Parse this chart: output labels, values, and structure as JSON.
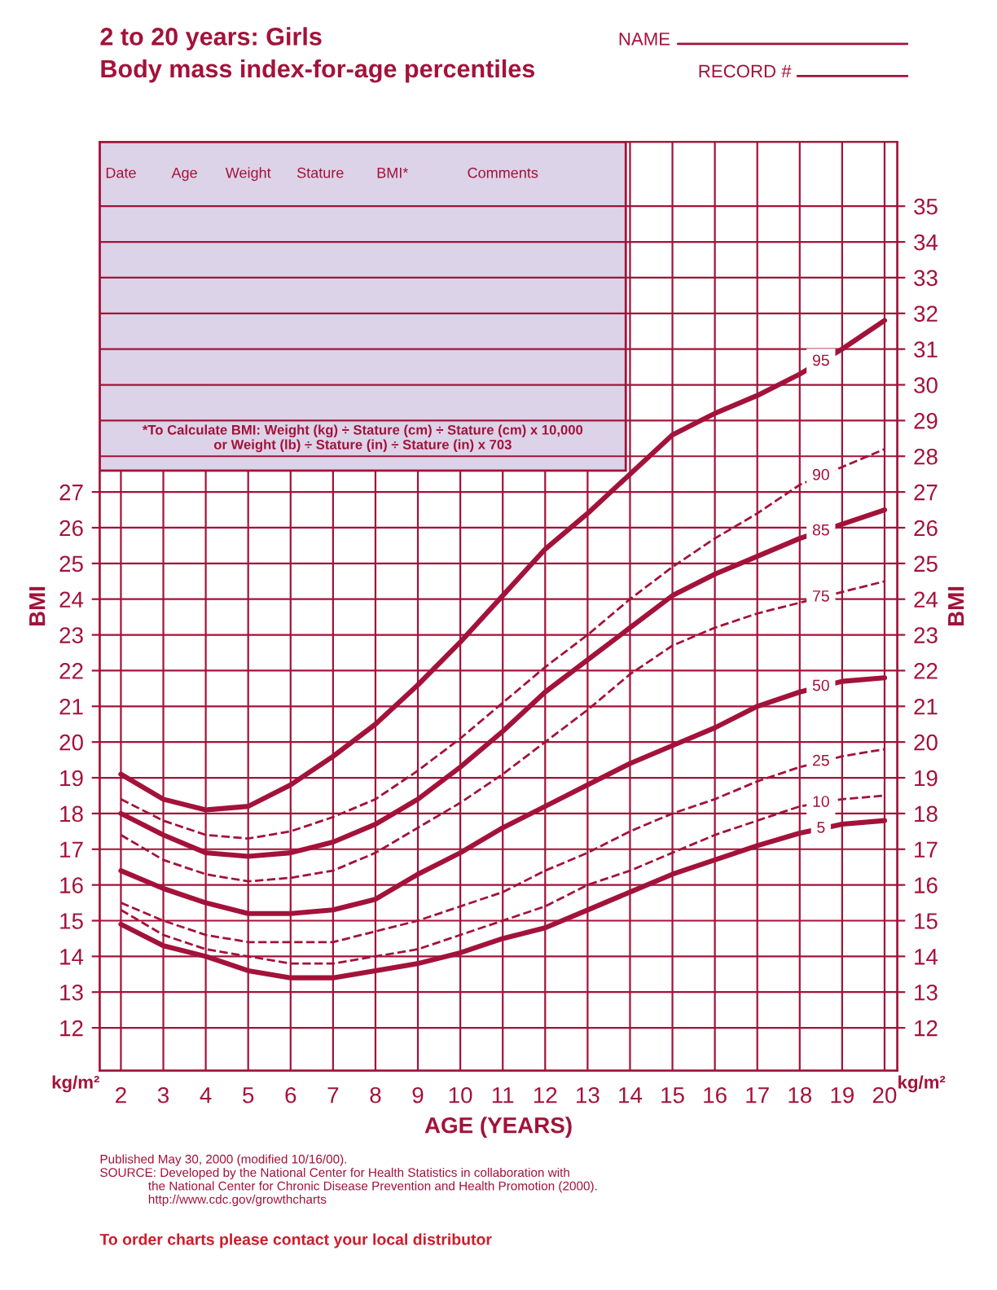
{
  "chart_data": {
    "type": "line",
    "title": "2 to 20 years: Girls",
    "subtitle": "Body mass index-for-age percentiles",
    "xlabel": "AGE (YEARS)",
    "ylabel": "BMI",
    "y2label": "BMI",
    "x": [
      2,
      3,
      4,
      5,
      6,
      7,
      8,
      9,
      10,
      11,
      12,
      13,
      14,
      15,
      16,
      17,
      18,
      19,
      20
    ],
    "series": [
      {
        "name": "95",
        "color": "#a3123a",
        "line_style": "solid",
        "values": [
          19.1,
          18.4,
          18.1,
          18.2,
          18.8,
          19.6,
          20.5,
          21.6,
          22.8,
          24.1,
          25.4,
          26.4,
          27.5,
          28.6,
          29.2,
          29.7,
          30.3,
          31.0,
          31.8
        ]
      },
      {
        "name": "90",
        "color": "#a3123a",
        "line_style": "dashed",
        "values": [
          18.4,
          17.8,
          17.4,
          17.3,
          17.5,
          17.9,
          18.4,
          19.2,
          20.1,
          21.1,
          22.1,
          23.0,
          24.0,
          24.9,
          25.7,
          26.4,
          27.2,
          27.7,
          28.2
        ]
      },
      {
        "name": "85",
        "color": "#a3123a",
        "line_style": "solid",
        "values": [
          18.0,
          17.4,
          16.9,
          16.8,
          16.9,
          17.2,
          17.7,
          18.4,
          19.3,
          20.3,
          21.4,
          22.3,
          23.2,
          24.1,
          24.7,
          25.2,
          25.7,
          26.1,
          26.5
        ]
      },
      {
        "name": "75",
        "color": "#a3123a",
        "line_style": "dashed",
        "values": [
          17.4,
          16.7,
          16.3,
          16.1,
          16.2,
          16.4,
          16.9,
          17.6,
          18.3,
          19.1,
          20.0,
          20.9,
          21.9,
          22.7,
          23.2,
          23.6,
          23.9,
          24.2,
          24.5
        ]
      },
      {
        "name": "50",
        "color": "#a3123a",
        "line_style": "solid",
        "values": [
          16.4,
          15.9,
          15.5,
          15.2,
          15.2,
          15.3,
          15.6,
          16.3,
          16.9,
          17.6,
          18.2,
          18.8,
          19.4,
          19.9,
          20.4,
          21.0,
          21.4,
          21.7,
          21.8
        ]
      },
      {
        "name": "25",
        "color": "#a3123a",
        "line_style": "dashed",
        "values": [
          15.5,
          15.0,
          14.6,
          14.4,
          14.4,
          14.4,
          14.7,
          15.0,
          15.4,
          15.8,
          16.4,
          16.9,
          17.5,
          18.0,
          18.4,
          18.9,
          19.3,
          19.6,
          19.8
        ]
      },
      {
        "name": "10",
        "color": "#a3123a",
        "line_style": "dashed",
        "values": [
          15.3,
          14.6,
          14.2,
          14.0,
          13.8,
          13.8,
          14.0,
          14.2,
          14.6,
          15.0,
          15.4,
          16.0,
          16.4,
          16.9,
          17.4,
          17.8,
          18.2,
          18.4,
          18.5
        ]
      },
      {
        "name": "5",
        "color": "#a3123a",
        "line_style": "solid",
        "values": [
          14.9,
          14.3,
          14.0,
          13.6,
          13.4,
          13.4,
          13.6,
          13.8,
          14.1,
          14.5,
          14.8,
          15.3,
          15.8,
          16.3,
          16.7,
          17.1,
          17.45,
          17.7,
          17.8
        ]
      }
    ],
    "xlim": [
      1.5,
      20.3
    ],
    "xticks": [
      2,
      3,
      4,
      5,
      6,
      7,
      8,
      9,
      10,
      11,
      12,
      13,
      14,
      15,
      16,
      17,
      18,
      19,
      20
    ],
    "ylim": [
      10.8,
      36.8
    ],
    "yticks": [
      12,
      13,
      14,
      15,
      16,
      17,
      18,
      19,
      20,
      21,
      22,
      23,
      24,
      25,
      26,
      27
    ],
    "y2lim": [
      10.8,
      36.8
    ],
    "y2ticks": [
      12,
      13,
      14,
      15,
      16,
      17,
      18,
      19,
      20,
      21,
      22,
      23,
      24,
      25,
      26,
      27,
      28,
      29,
      30,
      31,
      32,
      33,
      34,
      35
    ],
    "grid": true,
    "legend": false,
    "marker": "none",
    "annotations": [
      "Date",
      "Age",
      "Weight",
      "Stature",
      "BMI*",
      "Comments",
      "*To Calculate BMI: Weight (kg) ÷ Stature (cm) ÷ Stature (cm) x 10,000\nor Weight (lb) ÷ Stature (in) ÷ Stature (in) x 703",
      "NAME",
      "RECORD #",
      "kg/m²",
      "kg/m²",
      "Published May 30, 2000 (modified 10/16/00).\nSOURCE: Developed by the National Center for Health Statistics in collaboration with\n              the National Center for Chronic Disease Prevention and Health Promotion (2000).\n              http://www.cdc.gov/growthcharts",
      "To order charts please contact your local distributor"
    ]
  }
}
